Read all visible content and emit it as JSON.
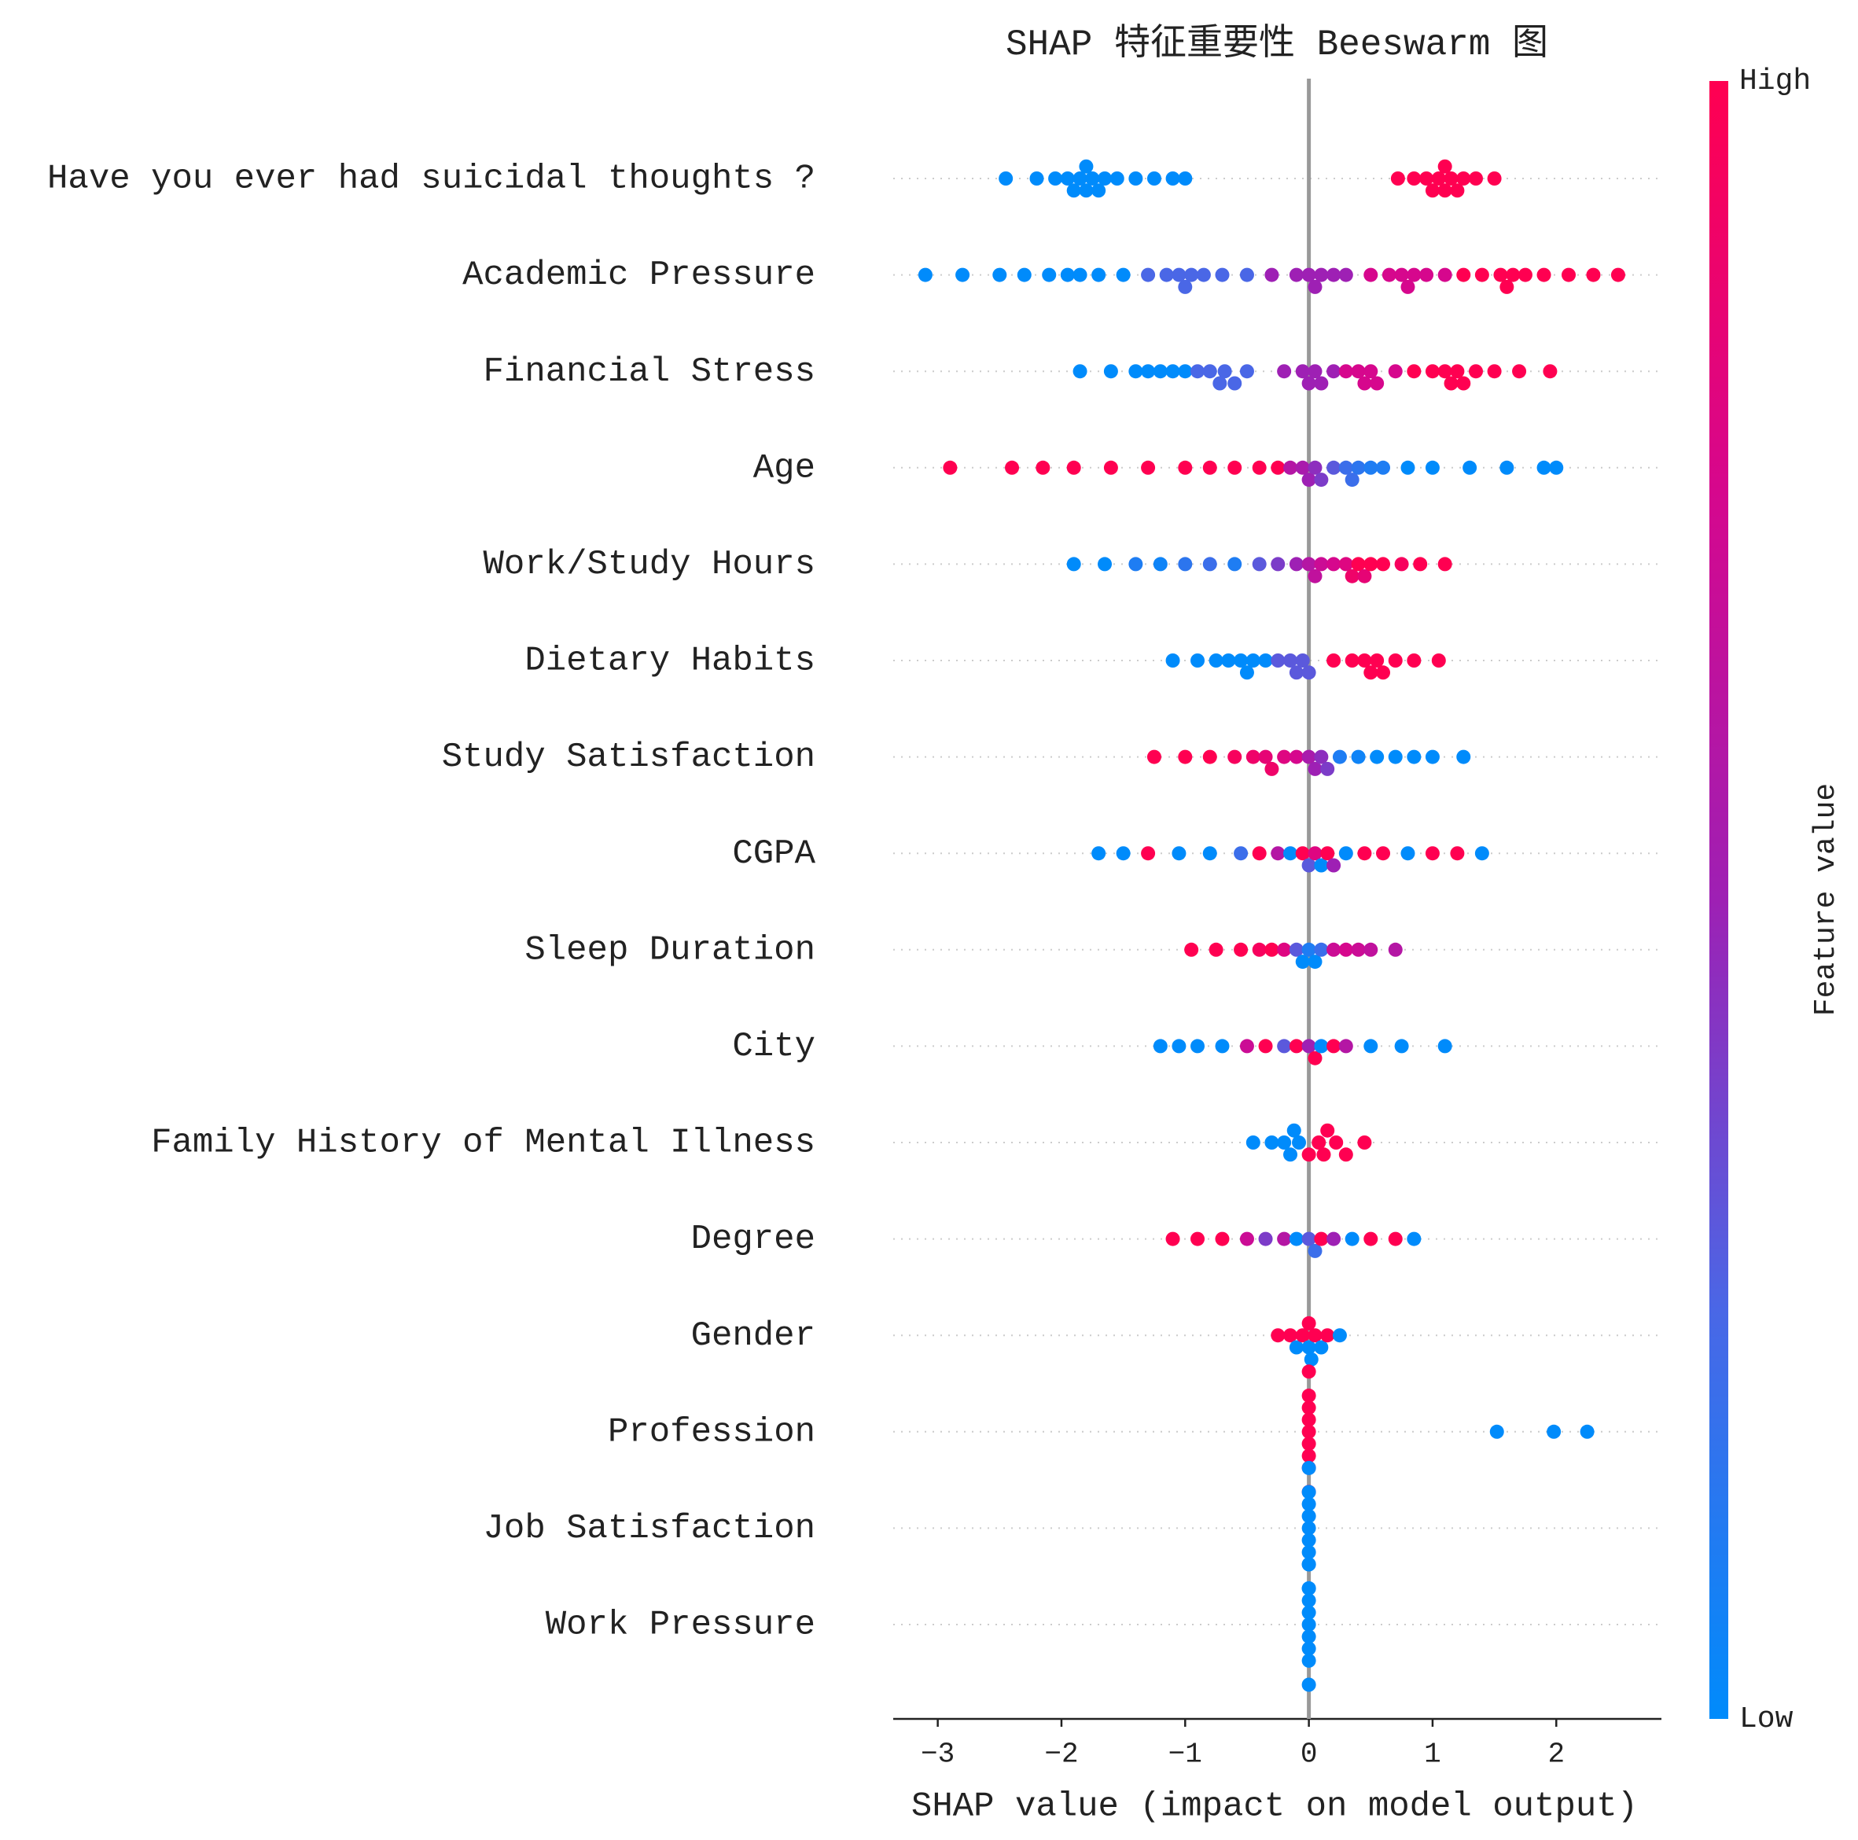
{
  "chart_data": {
    "type": "beeswarm",
    "title": "SHAP 特征重要性 Beeswarm 图",
    "xlabel": "SHAP value (impact on model output)",
    "xlim": [
      -3.36,
      2.85
    ],
    "xticks": [
      {
        "value": -3,
        "label": "−3"
      },
      {
        "value": -2,
        "label": "−2"
      },
      {
        "value": -1,
        "label": "−1"
      },
      0,
      1,
      2
    ],
    "colorbar": {
      "high": "High",
      "low": "Low",
      "label": "Feature value"
    },
    "colormap": [
      "#008bfb",
      "#4a67e6",
      "#9e20b4",
      "#d6078d",
      "#ff0051"
    ],
    "series": [
      {
        "name": "Have you ever had suicidal thoughts ?",
        "values": [
          -2.45,
          -2.2,
          -2.05,
          -1.95,
          -1.9,
          -1.85,
          -1.8,
          -1.8,
          -1.75,
          -1.7,
          -1.65,
          -1.55,
          -1.4,
          -1.25,
          -1.1,
          -1.0,
          0.72,
          0.85,
          0.95,
          1.0,
          1.05,
          1.1,
          1.1,
          1.15,
          1.2,
          1.25,
          1.35,
          1.5
        ],
        "feature_values": [
          0,
          0,
          0,
          0,
          0,
          0,
          0,
          0,
          0,
          0,
          0,
          0,
          0,
          0,
          0,
          0,
          1,
          1,
          1,
          1,
          1,
          1,
          1,
          1,
          1,
          1,
          1,
          1
        ]
      },
      {
        "name": "Academic Pressure",
        "values": [
          -3.1,
          -2.8,
          -2.5,
          -2.3,
          -2.1,
          -1.95,
          -1.85,
          -1.7,
          -1.5,
          -1.3,
          -1.15,
          -1.05,
          -1.0,
          -0.95,
          -0.85,
          -0.7,
          -0.5,
          -0.3,
          -0.1,
          0.0,
          0.05,
          0.1,
          0.2,
          0.3,
          0.5,
          0.65,
          0.75,
          0.8,
          0.85,
          0.95,
          1.1,
          1.25,
          1.4,
          1.55,
          1.6,
          1.65,
          1.75,
          1.9,
          2.1,
          2.3,
          2.5
        ],
        "feature_values": [
          0,
          0,
          0,
          0,
          0,
          0,
          0,
          0,
          0,
          0.25,
          0.25,
          0.25,
          0.25,
          0.25,
          0.25,
          0.25,
          0.25,
          0.5,
          0.5,
          0.5,
          0.5,
          0.5,
          0.5,
          0.5,
          0.75,
          0.75,
          0.75,
          0.75,
          0.75,
          0.75,
          0.75,
          1,
          1,
          1,
          1,
          1,
          1,
          1,
          1,
          1,
          1
        ]
      },
      {
        "name": "Financial Stress",
        "values": [
          -1.85,
          -1.6,
          -1.4,
          -1.3,
          -1.2,
          -1.1,
          -1.0,
          -0.9,
          -0.8,
          -0.72,
          -0.68,
          -0.6,
          -0.5,
          -0.2,
          -0.05,
          0.0,
          0.05,
          0.1,
          0.2,
          0.3,
          0.4,
          0.45,
          0.5,
          0.55,
          0.7,
          0.85,
          1.0,
          1.1,
          1.15,
          1.2,
          1.25,
          1.35,
          1.5,
          1.7,
          1.95
        ],
        "feature_values": [
          0,
          0,
          0,
          0,
          0,
          0,
          0,
          0.25,
          0.25,
          0.25,
          0.25,
          0.25,
          0.25,
          0.5,
          0.5,
          0.5,
          0.5,
          0.5,
          0.5,
          0.75,
          0.75,
          0.75,
          0.75,
          0.75,
          0.75,
          1,
          1,
          1,
          1,
          1,
          1,
          1,
          1,
          1,
          1
        ]
      },
      {
        "name": "Age",
        "values": [
          -2.9,
          -2.4,
          -2.15,
          -1.9,
          -1.6,
          -1.3,
          -1.0,
          -0.8,
          -0.6,
          -0.4,
          -0.25,
          -0.15,
          -0.05,
          0.0,
          0.05,
          0.1,
          0.2,
          0.3,
          0.35,
          0.4,
          0.5,
          0.6,
          0.8,
          1.0,
          1.3,
          1.6,
          1.9,
          2.0
        ],
        "feature_values": [
          1,
          1,
          1,
          1,
          1,
          1,
          1,
          1,
          1,
          1,
          1,
          0.6,
          0.55,
          0.5,
          0.45,
          0.4,
          0.3,
          0.2,
          0.2,
          0.15,
          0.1,
          0.1,
          0,
          0,
          0,
          0,
          0,
          0
        ]
      },
      {
        "name": "Work/Study Hours",
        "values": [
          -1.9,
          -1.65,
          -1.4,
          -1.2,
          -1.0,
          -0.8,
          -0.6,
          -0.4,
          -0.25,
          -0.1,
          0.0,
          0.05,
          0.1,
          0.2,
          0.3,
          0.35,
          0.4,
          0.45,
          0.5,
          0.6,
          0.75,
          0.9,
          1.1
        ],
        "feature_values": [
          0,
          0,
          0.1,
          0.05,
          0.15,
          0.2,
          0.1,
          0.3,
          0.4,
          0.5,
          0.6,
          0.65,
          0.7,
          0.75,
          0.8,
          0.9,
          1,
          0.85,
          1,
          1,
          0.95,
          1,
          1
        ]
      },
      {
        "name": "Dietary Habits",
        "values": [
          -1.1,
          -0.9,
          -0.75,
          -0.65,
          -0.55,
          -0.5,
          -0.45,
          -0.35,
          -0.25,
          -0.15,
          -0.1,
          -0.05,
          0.0,
          0.2,
          0.35,
          0.45,
          0.5,
          0.55,
          0.6,
          0.7,
          0.85,
          1.05
        ],
        "feature_values": [
          0,
          0,
          0,
          0,
          0,
          0,
          0,
          0,
          0.3,
          0.3,
          0.3,
          0.3,
          0.3,
          1,
          1,
          1,
          1,
          1,
          1,
          1,
          1,
          1
        ]
      },
      {
        "name": "Study Satisfaction",
        "values": [
          -1.25,
          -1.0,
          -0.8,
          -0.6,
          -0.45,
          -0.35,
          -0.3,
          -0.2,
          -0.1,
          0.0,
          0.05,
          0.1,
          0.15,
          0.25,
          0.4,
          0.55,
          0.7,
          0.85,
          1.0,
          1.25
        ],
        "feature_values": [
          1,
          1,
          1,
          0.95,
          0.9,
          0.85,
          0.9,
          0.8,
          0.75,
          0.55,
          0.5,
          0.45,
          0.4,
          0.1,
          0.05,
          0,
          0,
          0,
          0,
          0
        ]
      },
      {
        "name": "CGPA",
        "values": [
          -1.7,
          -1.5,
          -1.3,
          -1.05,
          -0.8,
          -0.55,
          -0.4,
          -0.25,
          -0.15,
          -0.05,
          0.0,
          0.05,
          0.1,
          0.15,
          0.2,
          0.3,
          0.45,
          0.6,
          0.8,
          1.0,
          1.2,
          1.4
        ],
        "feature_values": [
          0,
          0,
          1,
          0,
          0,
          0.2,
          1,
          0.6,
          0,
          1,
          0.3,
          0.8,
          0,
          1,
          0.5,
          0,
          1,
          1,
          0,
          1,
          1,
          0
        ]
      },
      {
        "name": "Sleep Duration",
        "values": [
          -0.95,
          -0.75,
          -0.55,
          -0.4,
          -0.3,
          -0.2,
          -0.1,
          -0.05,
          0.0,
          0.05,
          0.1,
          0.2,
          0.3,
          0.4,
          0.5,
          0.7
        ],
        "feature_values": [
          1,
          1,
          1,
          0.95,
          1,
          0.8,
          0.3,
          0,
          0.1,
          0,
          0.2,
          0.7,
          0.75,
          0.7,
          0.65,
          0.6
        ]
      },
      {
        "name": "City",
        "values": [
          -1.2,
          -1.05,
          -0.9,
          -0.7,
          -0.5,
          -0.35,
          -0.2,
          -0.1,
          0.0,
          0.05,
          0.1,
          0.2,
          0.3,
          0.5,
          0.75,
          1.1
        ],
        "feature_values": [
          0,
          0,
          0,
          0,
          0.7,
          1,
          0.3,
          1,
          0.5,
          1,
          0,
          1,
          0.6,
          0,
          0,
          0
        ]
      },
      {
        "name": "Family History of Mental Illness",
        "values": [
          -0.45,
          -0.3,
          -0.2,
          -0.15,
          -0.12,
          -0.08,
          0.0,
          0.08,
          0.12,
          0.15,
          0.22,
          0.3,
          0.45
        ],
        "feature_values": [
          0,
          0,
          0,
          0,
          0,
          0,
          1,
          1,
          1,
          1,
          1,
          1,
          1
        ]
      },
      {
        "name": "Degree",
        "values": [
          -1.1,
          -0.9,
          -0.7,
          -0.5,
          -0.35,
          -0.2,
          -0.1,
          0.0,
          0.05,
          0.1,
          0.2,
          0.35,
          0.5,
          0.7,
          0.85
        ],
        "feature_values": [
          1,
          1,
          1,
          0.7,
          0.4,
          0.6,
          0,
          0.3,
          0.2,
          1,
          0.5,
          0,
          1,
          1,
          0
        ]
      },
      {
        "name": "Gender",
        "values": [
          -0.25,
          -0.15,
          -0.1,
          -0.05,
          0.0,
          0.0,
          0.02,
          0.05,
          0.1,
          0.15,
          0.25
        ],
        "feature_values": [
          1,
          1,
          0,
          1,
          0,
          1,
          0,
          1,
          0,
          1,
          0
        ]
      },
      {
        "name": "Profession",
        "values": [
          0.0,
          0.0,
          0.0,
          0.0,
          0.0,
          0.0,
          0.0,
          0.0,
          0.0,
          1.52,
          1.98,
          2.25
        ],
        "feature_values": [
          1,
          1,
          1,
          1,
          1,
          1,
          1,
          1,
          1,
          0,
          0,
          0
        ]
      },
      {
        "name": "Job Satisfaction",
        "values": [
          0.0,
          0.0,
          0.0,
          0.0,
          0.0,
          0.0,
          0.0,
          0.0,
          0.0
        ],
        "feature_values": [
          0,
          0,
          0,
          0,
          0,
          0,
          0,
          0,
          0
        ]
      },
      {
        "name": "Work Pressure",
        "values": [
          0.0,
          0.0,
          0.0,
          0.0,
          0.0,
          0.0,
          0.0,
          0.0,
          0.0
        ],
        "feature_values": [
          0,
          0,
          0,
          0,
          0,
          0,
          0,
          0,
          0
        ]
      }
    ]
  }
}
